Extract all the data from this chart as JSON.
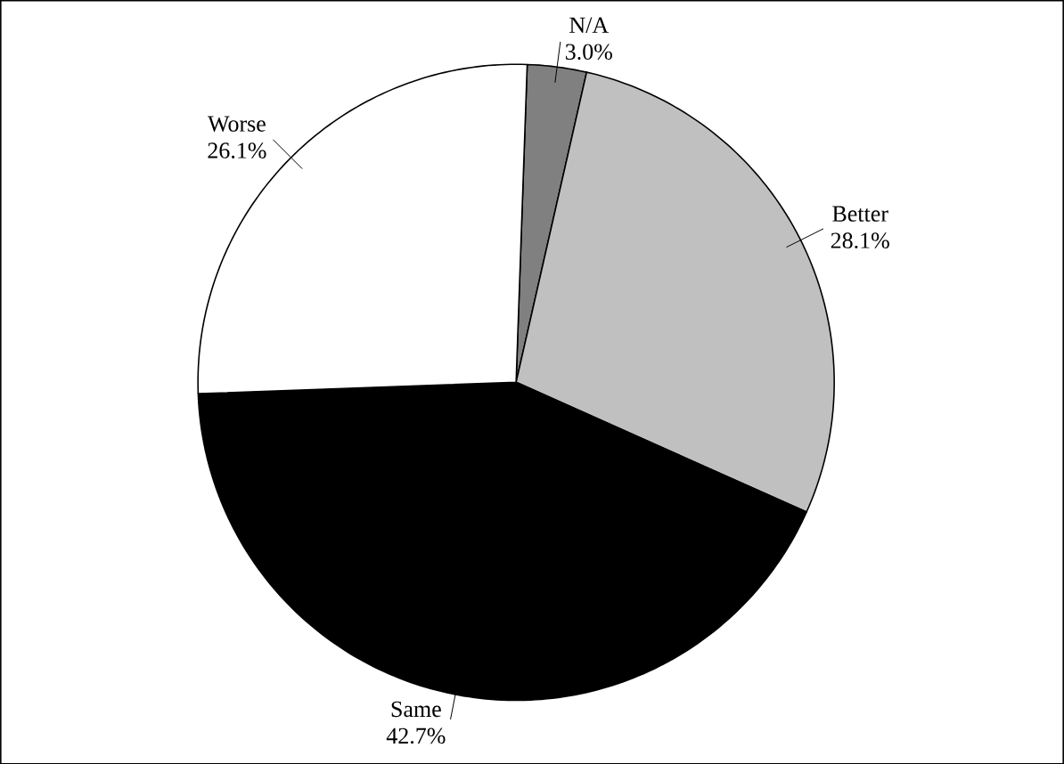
{
  "chart_data": {
    "type": "pie",
    "categories": [
      "N/A",
      "Better",
      "Same",
      "Worse"
    ],
    "values": [
      3.0,
      28.1,
      42.7,
      26.1
    ],
    "value_labels": [
      "3.0%",
      "28.1%",
      "42.7%",
      "26.1%"
    ],
    "colors": [
      "#808080",
      "#c0c0c0",
      "#000000",
      "#ffffff"
    ]
  }
}
